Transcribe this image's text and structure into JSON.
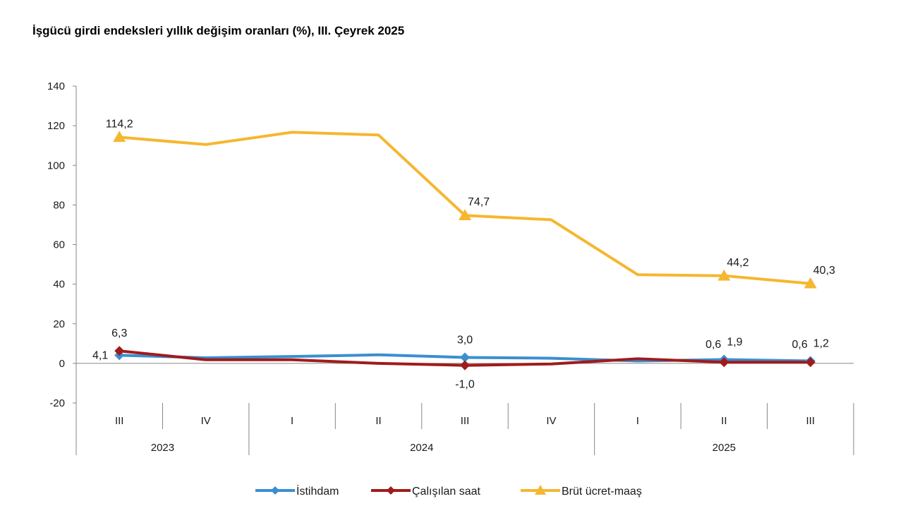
{
  "chart_data": {
    "type": "line",
    "title": "İşgücü girdi endeksleri yıllık değişim oranları (%), III. Çeyrek 2025",
    "xlabel": "",
    "ylabel": "",
    "ylim": [
      -20,
      140
    ],
    "yticks": [
      -20,
      0,
      20,
      40,
      60,
      80,
      100,
      120,
      140
    ],
    "categories": [
      "III",
      "IV",
      "I",
      "II",
      "III",
      "IV",
      "I",
      "II",
      "III"
    ],
    "year_groups": [
      {
        "label": "2023",
        "start": 0,
        "end": 1
      },
      {
        "label": "2024",
        "start": 2,
        "end": 5
      },
      {
        "label": "2025",
        "start": 6,
        "end": 8
      }
    ],
    "grid": false,
    "legend_position": "bottom",
    "series": [
      {
        "name": "İstihdam",
        "color": "#3a8fd0",
        "marker": "diamond",
        "values": [
          4.1,
          2.8,
          3.5,
          4.3,
          3.0,
          2.6,
          1.2,
          1.9,
          1.2
        ],
        "labels": [
          {
            "index": 0,
            "text": "4,1",
            "pos": "left"
          },
          {
            "index": 4,
            "text": "3,0",
            "pos": "above"
          },
          {
            "index": 7,
            "text": "1,9",
            "pos": "above-right"
          },
          {
            "index": 8,
            "text": "1,2",
            "pos": "above-right"
          }
        ]
      },
      {
        "name": "Çalışılan saat",
        "color": "#a01b1b",
        "marker": "diamond",
        "values": [
          6.3,
          1.8,
          1.8,
          0.0,
          -1.0,
          -0.3,
          2.3,
          0.6,
          0.6
        ],
        "labels": [
          {
            "index": 0,
            "text": "6,3",
            "pos": "above"
          },
          {
            "index": 4,
            "text": "-1,0",
            "pos": "below"
          },
          {
            "index": 7,
            "text": "0,6",
            "pos": "above-left"
          },
          {
            "index": 8,
            "text": "0,6",
            "pos": "above-left"
          }
        ]
      },
      {
        "name": "Brüt ücret-maaş",
        "color": "#f5b730",
        "marker": "triangle",
        "values": [
          114.2,
          110.5,
          116.7,
          115.3,
          74.7,
          72.5,
          44.8,
          44.2,
          40.3
        ],
        "labels": [
          {
            "index": 0,
            "text": "114,2",
            "pos": "above"
          },
          {
            "index": 4,
            "text": "74,7",
            "pos": "above-right"
          },
          {
            "index": 7,
            "text": "44,2",
            "pos": "above-right"
          },
          {
            "index": 8,
            "text": "40,3",
            "pos": "above-right"
          }
        ]
      }
    ],
    "marker_indices": [
      0,
      4,
      7,
      8
    ]
  }
}
